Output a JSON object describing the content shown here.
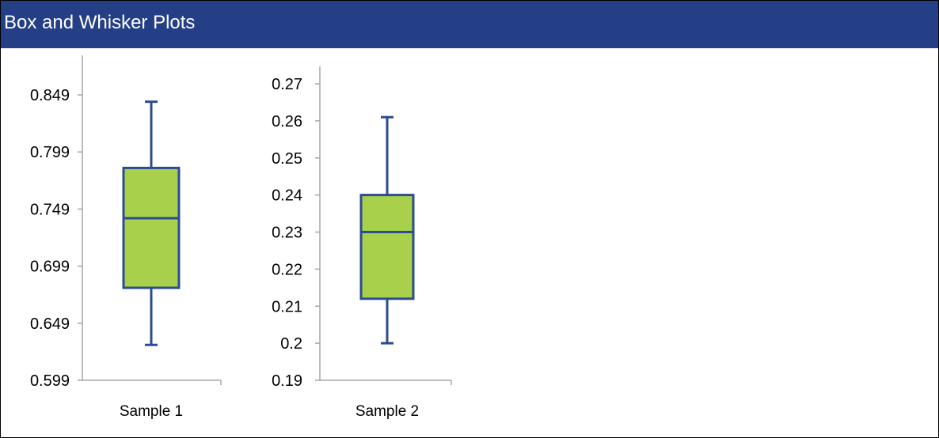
{
  "header": {
    "title": "Box and Whisker Plots"
  },
  "colors": {
    "header_bg": "#253f86",
    "box_fill": "#a8d04a",
    "box_stroke": "#2b4c93",
    "axis": "#a6a6a6"
  },
  "chart_data": [
    {
      "type": "box",
      "categories": [
        "Sample 1"
      ],
      "ylim": [
        0.599,
        0.869
      ],
      "yticks": [
        "0.599",
        "0.649",
        "0.699",
        "0.749",
        "0.799",
        "0.849"
      ],
      "series": [
        {
          "values": {
            "min": 0.63,
            "q1": 0.68,
            "median": 0.741,
            "q3": 0.785,
            "max": 0.843
          }
        }
      ]
    },
    {
      "type": "box",
      "categories": [
        "Sample 2"
      ],
      "ylim": [
        0.19,
        0.27
      ],
      "yticks": [
        "0.19",
        "0.2",
        "0.21",
        "0.22",
        "0.23",
        "0.24",
        "0.25",
        "0.26",
        "0.27"
      ],
      "series": [
        {
          "values": {
            "min": 0.2,
            "q1": 0.212,
            "median": 0.23,
            "q3": 0.24,
            "max": 0.261
          }
        }
      ]
    }
  ]
}
